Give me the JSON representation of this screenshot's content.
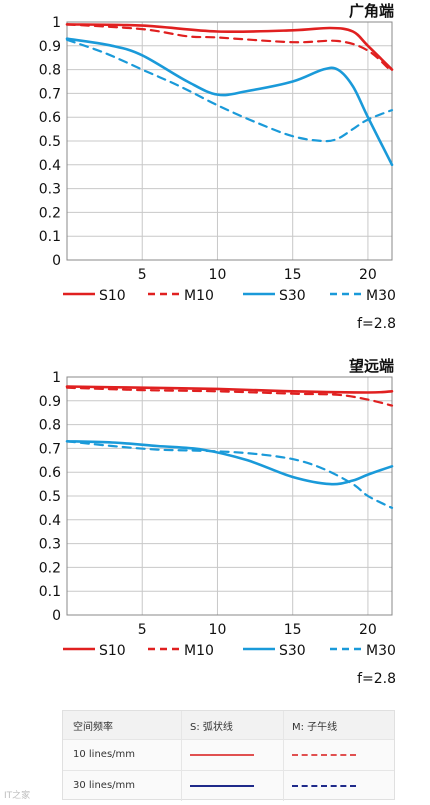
{
  "charts": [
    {
      "id": "chart-wide",
      "chart_data": {
        "type": "line",
        "title": "广角端",
        "xlim": [
          0,
          21.6
        ],
        "ylim": [
          0,
          1
        ],
        "x_ticks": [
          5,
          10,
          15,
          20
        ],
        "y_ticks": [
          0,
          0.1,
          0.2,
          0.3,
          0.4,
          0.5,
          0.6,
          0.7,
          0.8,
          0.9,
          1
        ],
        "aperture_label": "f=2.8",
        "series": [
          {
            "name": "S10",
            "color": "#e02020",
            "dashed": false,
            "x": [
              0,
              5,
              10,
              15,
              17.5,
              19,
              20,
              21.6
            ],
            "y": [
              0.99,
              0.985,
              0.96,
              0.965,
              0.975,
              0.96,
              0.9,
              0.8
            ]
          },
          {
            "name": "M10",
            "color": "#e02020",
            "dashed": true,
            "x": [
              0,
              5,
              8,
              10,
              15,
              18,
              20,
              21.6
            ],
            "y": [
              0.99,
              0.97,
              0.94,
              0.935,
              0.915,
              0.92,
              0.88,
              0.79
            ]
          },
          {
            "name": "S30",
            "color": "#1a9ad9",
            "dashed": false,
            "x": [
              0,
              3,
              5,
              8,
              10,
              12,
              15,
              17,
              18,
              19,
              20,
              21.6
            ],
            "y": [
              0.93,
              0.9,
              0.86,
              0.75,
              0.695,
              0.71,
              0.75,
              0.8,
              0.8,
              0.73,
              0.6,
              0.4
            ]
          },
          {
            "name": "M30",
            "color": "#1a9ad9",
            "dashed": true,
            "x": [
              0,
              2.5,
              5,
              7.5,
              10,
              12.5,
              15,
              17,
              18,
              19,
              20,
              21.6
            ],
            "y": [
              0.925,
              0.87,
              0.8,
              0.73,
              0.65,
              0.58,
              0.52,
              0.5,
              0.51,
              0.55,
              0.59,
              0.63
            ]
          }
        ]
      }
    },
    {
      "id": "chart-tele",
      "chart_data": {
        "type": "line",
        "title": "望远端",
        "xlim": [
          0,
          21.6
        ],
        "ylim": [
          0,
          1
        ],
        "x_ticks": [
          5,
          10,
          15,
          20
        ],
        "y_ticks": [
          0,
          0.1,
          0.2,
          0.3,
          0.4,
          0.5,
          0.6,
          0.7,
          0.8,
          0.9,
          1
        ],
        "aperture_label": "f=2.8",
        "series": [
          {
            "name": "S10",
            "color": "#e02020",
            "dashed": false,
            "x": [
              0,
              5,
              10,
              15,
              20,
              21.6
            ],
            "y": [
              0.96,
              0.955,
              0.95,
              0.94,
              0.935,
              0.94
            ]
          },
          {
            "name": "M10",
            "color": "#e02020",
            "dashed": true,
            "x": [
              0,
              5,
              10,
              15,
              18,
              20,
              21.6
            ],
            "y": [
              0.955,
              0.945,
              0.94,
              0.93,
              0.925,
              0.905,
              0.88
            ]
          },
          {
            "name": "S30",
            "color": "#1a9ad9",
            "dashed": false,
            "x": [
              0,
              3,
              6,
              9,
              12,
              15,
              17.5,
              19,
              20,
              21.6
            ],
            "y": [
              0.73,
              0.725,
              0.71,
              0.695,
              0.65,
              0.58,
              0.55,
              0.565,
              0.59,
              0.625
            ]
          },
          {
            "name": "M30",
            "color": "#1a9ad9",
            "dashed": true,
            "x": [
              0,
              3,
              6,
              9,
              12,
              15,
              17,
              19,
              20,
              21.6
            ],
            "y": [
              0.73,
              0.71,
              0.695,
              0.69,
              0.68,
              0.655,
              0.615,
              0.55,
              0.5,
              0.45
            ]
          }
        ]
      }
    }
  ],
  "legend_table": {
    "header": [
      "空间频率",
      "S: 弧状线",
      "M: 子午线"
    ],
    "rows": [
      {
        "label": "10 lines/mm",
        "color": "#e05050"
      },
      {
        "label": "30 lines/mm",
        "color": "#1f2a8a"
      }
    ]
  },
  "watermark": "IT之家"
}
